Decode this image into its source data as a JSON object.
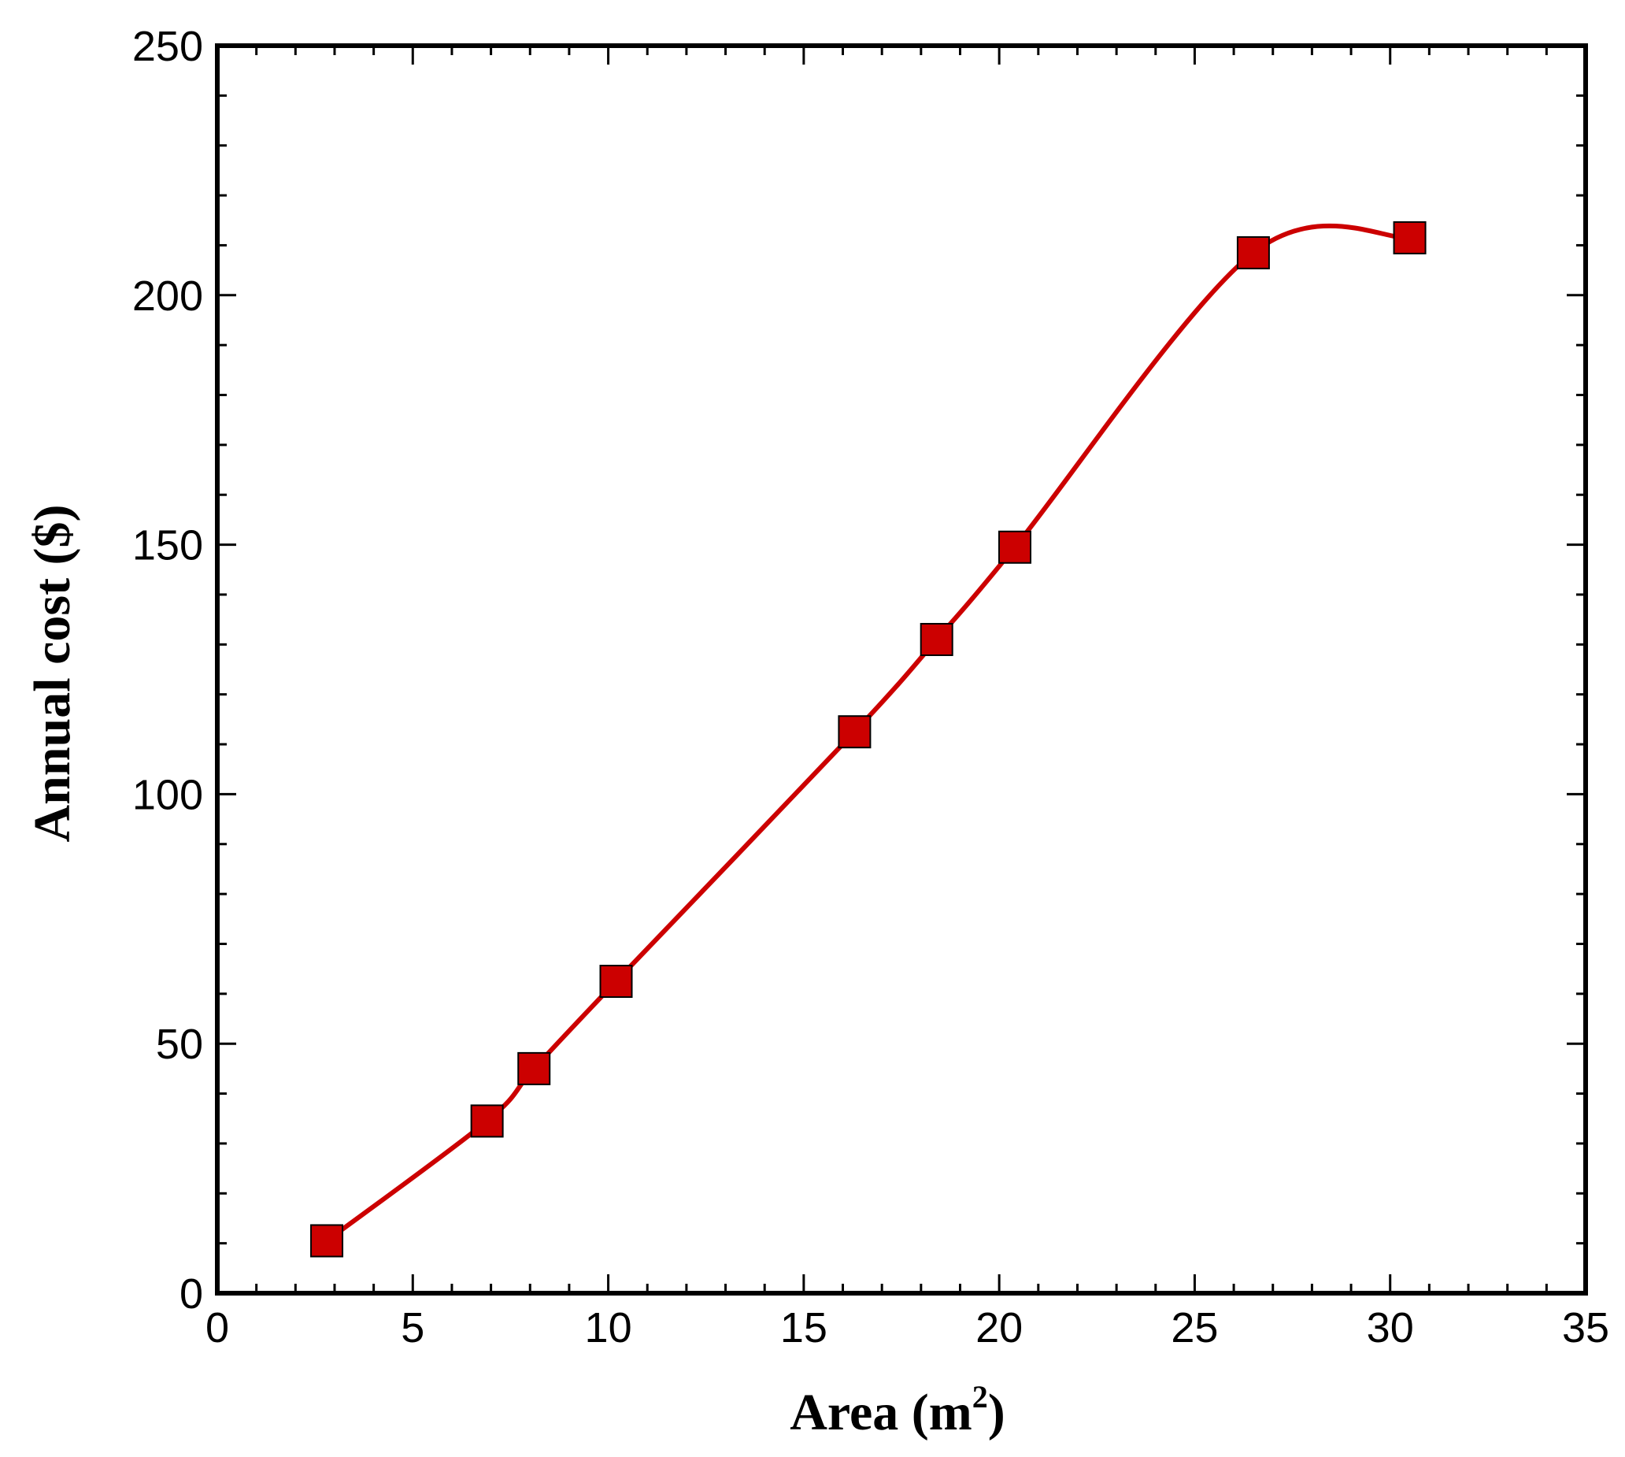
{
  "chart_data": {
    "type": "line",
    "xlabel": {
      "prefix": "Area (m",
      "sup": "2",
      "suffix": ")"
    },
    "ylabel": "Annual cost ($)",
    "xlim": [
      0,
      35
    ],
    "ylim": [
      0,
      250
    ],
    "x_major_ticks": [
      0,
      5,
      10,
      15,
      20,
      25,
      30,
      35
    ],
    "y_major_ticks": [
      0,
      50,
      100,
      150,
      200,
      250
    ],
    "x_tick_labels": [
      "0",
      "5",
      "10",
      "15",
      "20",
      "25",
      "30",
      "35"
    ],
    "y_tick_labels": [
      "0",
      "50",
      "100",
      "150",
      "200",
      "250"
    ],
    "x_minor_step": 1,
    "y_minor_step": 10,
    "grid": false,
    "series": [
      {
        "line_color": "#cc0000",
        "marker": "square",
        "marker_fill": "#cc0000",
        "marker_edge": "#000000",
        "x": [
          2.8,
          6.9,
          8.1,
          10.2,
          16.3,
          18.4,
          20.4,
          26.5,
          30.5
        ],
        "y": [
          10.5,
          34.5,
          45.0,
          62.5,
          112.5,
          131.0,
          149.5,
          208.5,
          211.5
        ]
      }
    ]
  }
}
